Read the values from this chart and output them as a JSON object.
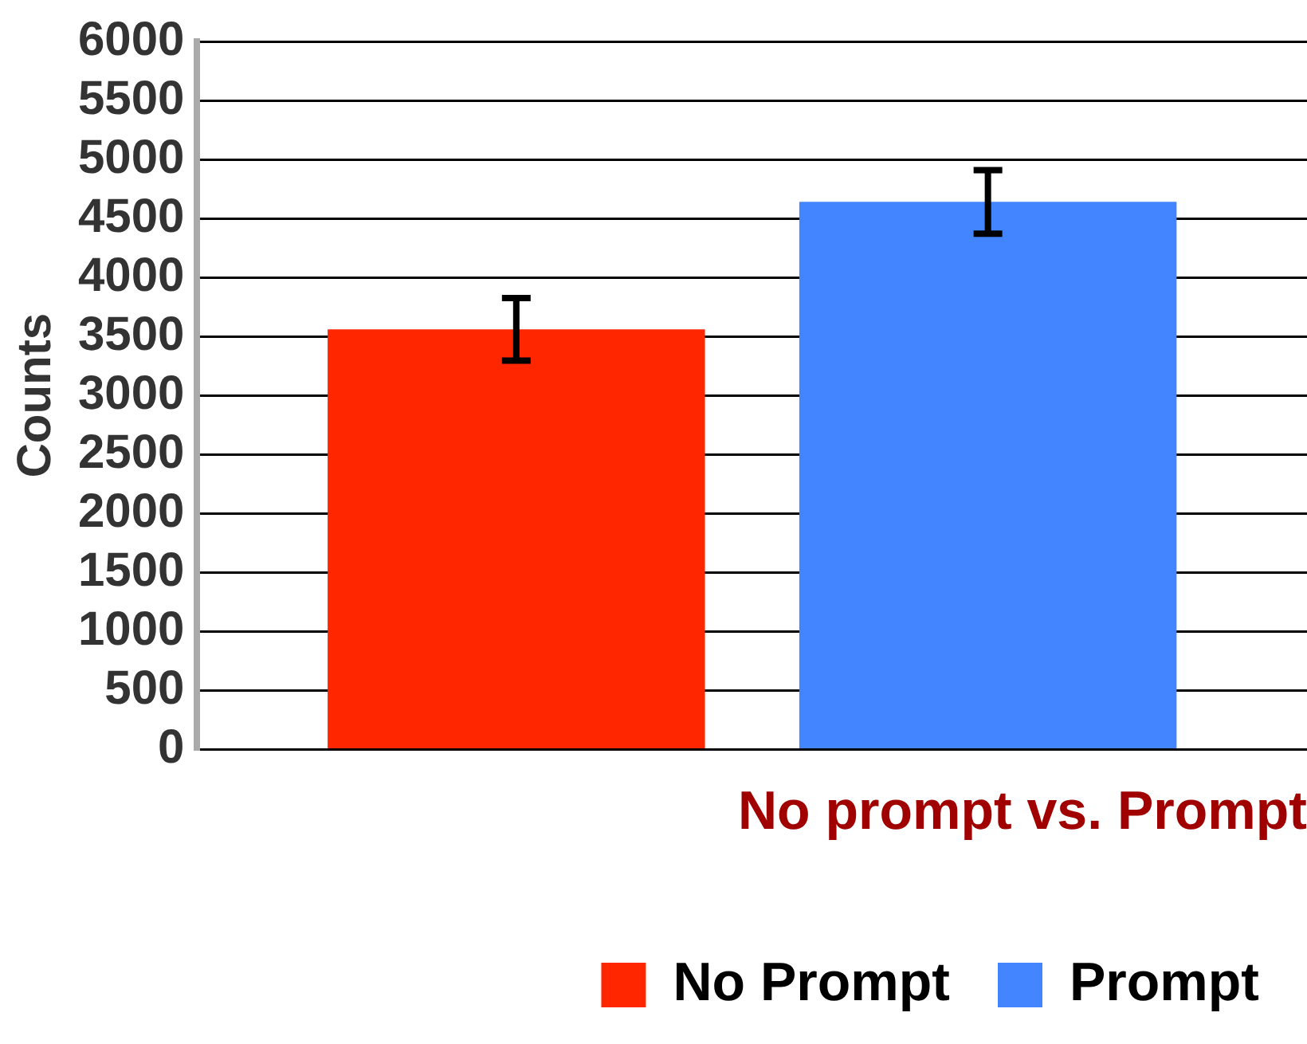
{
  "chart_data": {
    "type": "bar",
    "xlabel": "No prompt vs. Prompt",
    "ylabel": "Counts",
    "categories": [
      null
    ],
    "series": [
      {
        "name": "No Prompt",
        "color": "#ff2600",
        "values": [
          3560
        ],
        "errors": [
          265
        ]
      },
      {
        "name": "Prompt",
        "color": "#4285ff",
        "values": [
          4640
        ],
        "errors": [
          270
        ]
      }
    ],
    "ylim": [
      0,
      6000
    ],
    "yticks": [
      0,
      500,
      1000,
      1500,
      2000,
      2500,
      3000,
      3500,
      4000,
      4500,
      5000,
      5500,
      6000
    ],
    "grid": "y",
    "legend": "bottom"
  }
}
